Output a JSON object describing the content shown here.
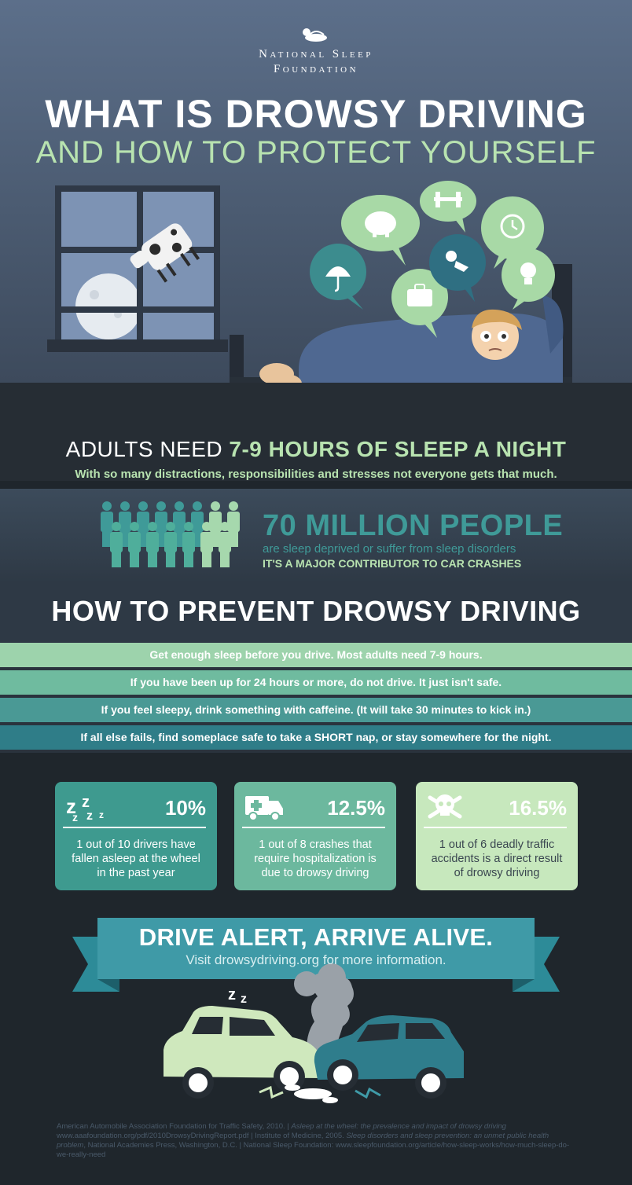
{
  "brand": {
    "line1": "National Sleep",
    "line2": "Foundation"
  },
  "title": {
    "main": "WHAT IS DROWSY DRIVING",
    "sub": "AND HOW TO PROTECT YOURSELF"
  },
  "bubble_icons": [
    "umbrella-icon",
    "piggy-bank-icon",
    "suitcase-icon",
    "dumbbell-icon",
    "child-icon",
    "alarm-clock-icon",
    "lightbulb-icon"
  ],
  "sleep_need": {
    "prefix": "ADULTS NEED ",
    "highlight": "7-9 HOURS OF SLEEP A NIGHT",
    "subtext": "With so many distractions, responsibilities and stresses not everyone gets that much."
  },
  "people_stat": {
    "headline": "70 MILLION PEOPLE",
    "line1": "are sleep deprived or suffer from sleep disorders",
    "line2": "IT'S A MAJOR CONTRIBUTOR TO CAR CRASHES"
  },
  "prevent": {
    "title": "HOW TO PREVENT DROWSY DRIVING",
    "tips": [
      "Get enough sleep before you drive. Most adults need 7-9 hours.",
      "If you have been up for 24 hours or more, do not drive. It just isn't safe.",
      "If you feel sleepy, drink something with caffeine. (It will take 30 minutes to kick in.)",
      "If all else fails, find someplace safe to take a SHORT nap, or stay somewhere for the night."
    ]
  },
  "stats": [
    {
      "icon": "zzz-icon",
      "percent": "10%",
      "text": "1 out of 10 drivers have fallen asleep at the wheel in the past year"
    },
    {
      "icon": "ambulance-icon",
      "percent": "12.5%",
      "text": "1 out of 8 crashes that require hospitalization is due to drowsy driving"
    },
    {
      "icon": "skull-crossbones-icon",
      "percent": "16.5%",
      "text": "1 out of 6 deadly traffic accidents is a direct result of drowsy driving"
    }
  ],
  "banner": {
    "title": "DRIVE ALERT, ARRIVE ALIVE.",
    "subtitle": "Visit drowsydriving.org for more information."
  },
  "references": {
    "part1": "American Automobile Association Foundation for Traffic Safety, 2010.  |  ",
    "part2_italic": "Asleep at the wheel: the prevalence and impact of drowsy driving",
    "part3": " www.aaafoundation.org/pdf/2010DrowsyDrivingReport.pdf  |  Institute of Medicine, 2005. ",
    "part4_italic": "Sleep disorders and sleep prevention: an unmet public health problem",
    "part5": ", National Academies Press, Washington, D.C.  |  National Sleep Foundation: www.sleepfoundation.org/article/how-sleep-works/how-much-sleep-do-we-really-need"
  },
  "colors": {
    "mint": "#b8e3b0",
    "teal": "#3f9a98",
    "dark_bg": "#262d34",
    "hero_bg": "#5c6f8a"
  }
}
